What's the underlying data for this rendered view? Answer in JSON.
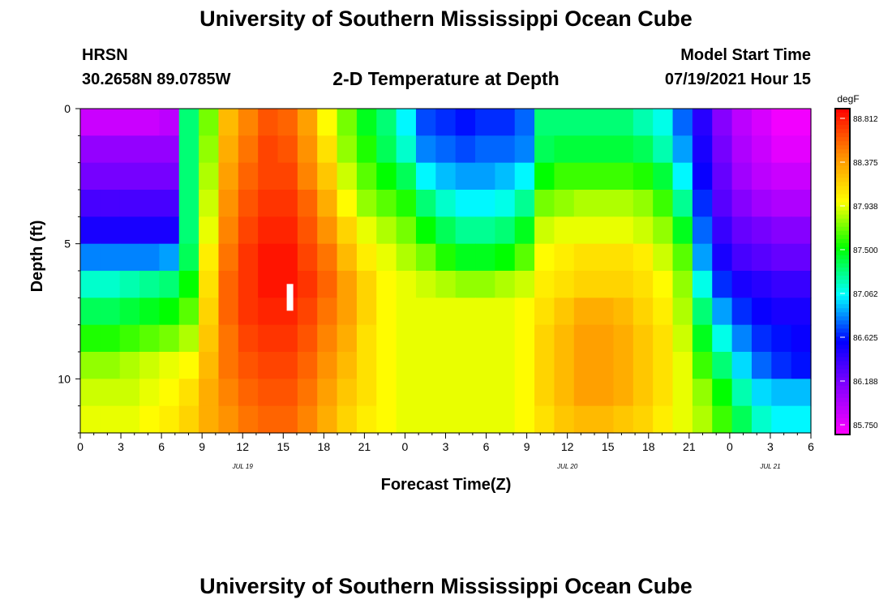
{
  "header": {
    "title": "University of Southern Mississippi Ocean Cube",
    "footer_title": "University of Southern Mississippi Ocean Cube",
    "station_name": "HRSN",
    "coordinates": "30.2658N  89.0785W",
    "plot_title": "2-D Temperature at Depth",
    "model_start_label": "Model Start Time",
    "model_start_value": "07/19/2021 Hour 15"
  },
  "chart_data": {
    "type": "heatmap",
    "title": "2-D Temperature at Depth",
    "xlabel": "Forecast Time(Z)",
    "ylabel": "Depth (ft)",
    "x_tick_labels": [
      "0",
      "3",
      "6",
      "9",
      "12",
      "15",
      "18",
      "21",
      "0",
      "3",
      "6",
      "9",
      "12",
      "15",
      "18",
      "21",
      "0",
      "3",
      "6"
    ],
    "x_tick_hours": [
      0,
      3,
      6,
      9,
      12,
      15,
      18,
      21,
      24,
      27,
      30,
      33,
      36,
      39,
      42,
      45,
      48,
      51,
      54
    ],
    "date_labels": [
      {
        "hour": 12,
        "text": "JUL 19"
      },
      {
        "hour": 36,
        "text": "JUL 20"
      },
      {
        "hour": 51,
        "text": "JUL 21"
      }
    ],
    "xlim": [
      0,
      54
    ],
    "y_tick_labels": [
      "0",
      "5",
      "10"
    ],
    "y_tick_values": [
      0,
      5,
      10
    ],
    "ylim": [
      0,
      12
    ],
    "y_inverted": true,
    "colorbar": {
      "unit": "degF",
      "tick_labels": [
        "88.812",
        "88.375",
        "87.938",
        "87.500",
        "87.062",
        "86.625",
        "86.188",
        "85.750"
      ],
      "range": [
        85.75,
        88.812
      ],
      "colors": [
        "#ff00ff",
        "#8a00ff",
        "#0000ff",
        "#00ffff",
        "#00ff00",
        "#ffff00",
        "#ff8c00",
        "#ff0000"
      ]
    },
    "marker": {
      "hour": 15.5,
      "depth": 7.0
    },
    "depth_rows": [
      0.5,
      1.5,
      2.5,
      3.5,
      4.5,
      5.5,
      6.5,
      7.5,
      8.5,
      9.5,
      10.5,
      11.5
    ],
    "hours": [
      0,
      1.5,
      3,
      4.5,
      6,
      7.5,
      9,
      10.5,
      12,
      13.5,
      15,
      16.5,
      18,
      19.5,
      21,
      22.5,
      24,
      25.5,
      27,
      28.5,
      30,
      31.5,
      33,
      34.5,
      36,
      37.5,
      39,
      40.5,
      42,
      43.5,
      45,
      46.5,
      48,
      49.5,
      51,
      52.5,
      54
    ],
    "values_degF": [
      [
        85.95,
        85.95,
        85.95,
        85.95,
        86.0,
        87.3,
        87.7,
        88.2,
        88.4,
        88.55,
        88.5,
        88.3,
        87.95,
        87.7,
        87.45,
        87.3,
        87.05,
        86.75,
        86.7,
        86.65,
        86.7,
        86.7,
        86.8,
        87.3,
        87.3,
        87.3,
        87.3,
        87.3,
        87.2,
        87.1,
        86.8,
        86.5,
        86.2,
        86.0,
        85.9,
        85.8,
        85.8
      ],
      [
        86.15,
        86.15,
        86.15,
        86.15,
        86.15,
        87.3,
        87.75,
        88.25,
        88.45,
        88.6,
        88.55,
        88.35,
        88.05,
        87.75,
        87.55,
        87.35,
        87.15,
        86.85,
        86.8,
        86.75,
        86.8,
        86.8,
        86.85,
        87.35,
        87.4,
        87.4,
        87.4,
        87.4,
        87.35,
        87.2,
        86.9,
        86.55,
        86.25,
        86.05,
        85.95,
        85.85,
        85.85
      ],
      [
        86.25,
        86.25,
        86.25,
        86.25,
        86.25,
        87.3,
        87.8,
        88.3,
        88.5,
        88.6,
        88.6,
        88.4,
        88.15,
        87.85,
        87.65,
        87.5,
        87.35,
        87.05,
        86.95,
        86.9,
        86.9,
        86.95,
        87.05,
        87.5,
        87.6,
        87.6,
        87.6,
        87.6,
        87.55,
        87.4,
        87.05,
        86.6,
        86.3,
        86.1,
        86.0,
        85.95,
        85.95
      ],
      [
        86.4,
        86.4,
        86.4,
        86.4,
        86.4,
        87.3,
        87.85,
        88.35,
        88.55,
        88.65,
        88.65,
        88.5,
        88.25,
        87.95,
        87.75,
        87.65,
        87.55,
        87.3,
        87.15,
        87.05,
        87.05,
        87.1,
        87.25,
        87.7,
        87.75,
        87.8,
        87.8,
        87.8,
        87.75,
        87.6,
        87.25,
        86.7,
        86.35,
        86.2,
        86.1,
        86.05,
        86.05
      ],
      [
        86.55,
        86.55,
        86.55,
        86.55,
        86.55,
        87.3,
        87.9,
        88.4,
        88.6,
        88.7,
        88.7,
        88.55,
        88.35,
        88.1,
        87.9,
        87.8,
        87.7,
        87.5,
        87.35,
        87.25,
        87.25,
        87.3,
        87.45,
        87.85,
        87.9,
        87.9,
        87.9,
        87.9,
        87.85,
        87.75,
        87.45,
        86.8,
        86.45,
        86.3,
        86.25,
        86.2,
        86.2
      ],
      [
        86.85,
        86.85,
        86.85,
        86.85,
        86.9,
        87.35,
        88.0,
        88.45,
        88.65,
        88.75,
        88.75,
        88.6,
        88.45,
        88.2,
        88.0,
        87.9,
        87.8,
        87.7,
        87.55,
        87.45,
        87.45,
        87.5,
        87.65,
        87.95,
        88.0,
        88.05,
        88.05,
        88.05,
        88.0,
        87.85,
        87.65,
        86.9,
        86.55,
        86.4,
        86.35,
        86.3,
        86.3
      ],
      [
        87.15,
        87.15,
        87.2,
        87.25,
        87.3,
        87.5,
        88.05,
        88.5,
        88.65,
        88.75,
        88.75,
        88.65,
        88.5,
        88.3,
        88.1,
        87.95,
        87.9,
        87.85,
        87.8,
        87.75,
        87.75,
        87.8,
        87.85,
        88.0,
        88.05,
        88.1,
        88.1,
        88.1,
        88.05,
        87.95,
        87.75,
        87.1,
        86.7,
        86.55,
        86.5,
        86.45,
        86.45
      ],
      [
        87.35,
        87.35,
        87.4,
        87.45,
        87.5,
        87.65,
        88.1,
        88.5,
        88.65,
        88.7,
        88.7,
        88.6,
        88.45,
        88.3,
        88.1,
        87.95,
        87.9,
        87.9,
        87.9,
        87.9,
        87.9,
        87.9,
        87.95,
        88.05,
        88.15,
        88.25,
        88.25,
        88.2,
        88.1,
        88.0,
        87.8,
        87.3,
        86.9,
        86.7,
        86.6,
        86.55,
        86.55
      ],
      [
        87.55,
        87.55,
        87.6,
        87.65,
        87.7,
        87.8,
        88.15,
        88.45,
        88.6,
        88.65,
        88.65,
        88.55,
        88.4,
        88.25,
        88.05,
        87.95,
        87.9,
        87.9,
        87.9,
        87.9,
        87.9,
        87.9,
        87.95,
        88.1,
        88.2,
        88.3,
        88.3,
        88.25,
        88.15,
        88.05,
        87.85,
        87.45,
        87.1,
        86.85,
        86.7,
        86.65,
        86.6
      ],
      [
        87.75,
        87.75,
        87.8,
        87.85,
        87.9,
        87.95,
        88.2,
        88.45,
        88.55,
        88.6,
        88.6,
        88.5,
        88.35,
        88.2,
        88.05,
        87.95,
        87.9,
        87.9,
        87.9,
        87.9,
        87.9,
        87.9,
        87.95,
        88.1,
        88.2,
        88.3,
        88.3,
        88.25,
        88.15,
        88.05,
        87.9,
        87.6,
        87.3,
        87.0,
        86.8,
        86.7,
        86.65
      ],
      [
        87.85,
        87.85,
        87.85,
        87.9,
        87.95,
        88.05,
        88.25,
        88.4,
        88.5,
        88.55,
        88.55,
        88.45,
        88.3,
        88.15,
        88.05,
        87.95,
        87.9,
        87.9,
        87.9,
        87.9,
        87.9,
        87.9,
        87.95,
        88.1,
        88.2,
        88.3,
        88.3,
        88.25,
        88.15,
        88.05,
        87.9,
        87.75,
        87.5,
        87.2,
        87.0,
        86.95,
        86.95
      ],
      [
        87.9,
        87.9,
        87.9,
        87.95,
        88.0,
        88.1,
        88.25,
        88.35,
        88.45,
        88.5,
        88.5,
        88.4,
        88.25,
        88.1,
        88.0,
        87.95,
        87.9,
        87.9,
        87.9,
        87.9,
        87.9,
        87.9,
        87.95,
        88.05,
        88.15,
        88.2,
        88.2,
        88.15,
        88.1,
        88.0,
        87.9,
        87.8,
        87.6,
        87.35,
        87.15,
        87.05,
        87.05
      ]
    ]
  }
}
